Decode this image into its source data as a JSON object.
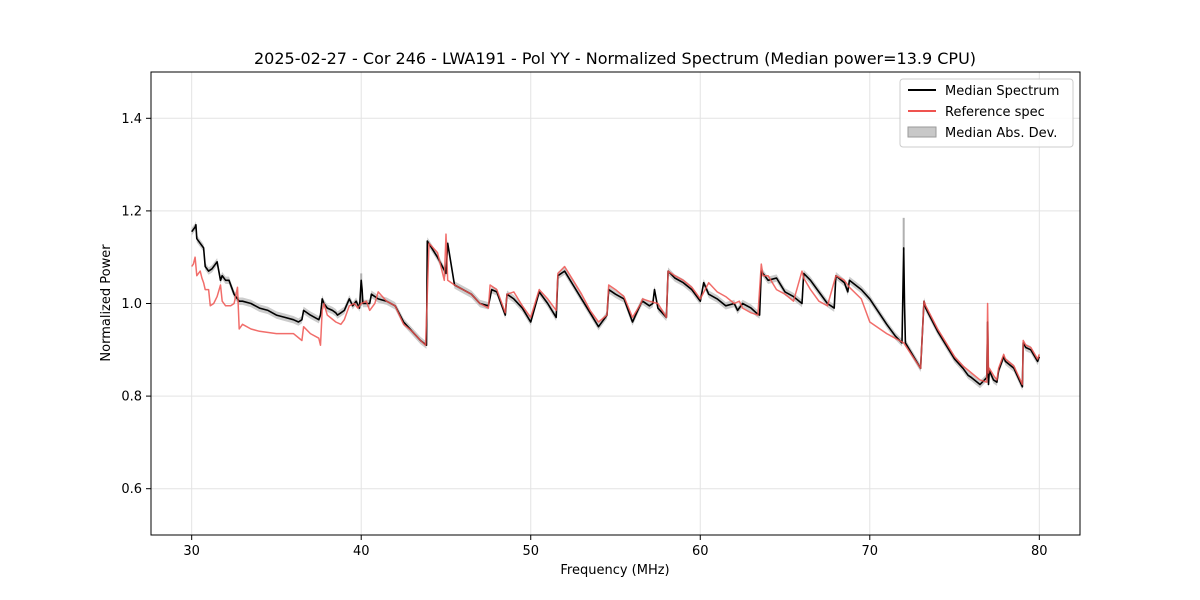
{
  "chart_data": {
    "type": "line",
    "title": "2025-02-27 - Cor 246 - LWA191 - Pol YY - Normalized Spectrum (Median power=13.9 CPU)",
    "xlabel": "Frequency (MHz)",
    "ylabel": "Normalized Power",
    "xlim": [
      27.6,
      82.4
    ],
    "ylim": [
      0.5,
      1.5
    ],
    "xticks": [
      30,
      40,
      50,
      60,
      70,
      80
    ],
    "yticks": [
      0.6,
      0.8,
      1.0,
      1.2,
      1.4
    ],
    "xtick_labels": [
      "30",
      "40",
      "50",
      "60",
      "70",
      "80"
    ],
    "ytick_labels": [
      "0.6",
      "0.8",
      "1.0",
      "1.2",
      "1.4"
    ],
    "grid": true,
    "legend_position": "top-right",
    "colors": {
      "median": "#000000",
      "reference": "#ef5350",
      "band": "#bfbfbf",
      "overlap": "#8b0000"
    },
    "series": [
      {
        "name": "Median Spectrum",
        "x": [
          30.0,
          30.2,
          30.25,
          30.3,
          30.5,
          30.6,
          30.7,
          30.8,
          31.0,
          31.2,
          31.5,
          31.7,
          31.8,
          32.0,
          32.2,
          32.5,
          32.7,
          32.8,
          33.0,
          33.5,
          34.0,
          34.5,
          35.0,
          35.5,
          36.0,
          36.3,
          36.5,
          36.6,
          37.0,
          37.5,
          37.6,
          37.7,
          37.8,
          38.0,
          38.3,
          38.5,
          38.6,
          38.8,
          39.0,
          39.3,
          39.5,
          39.7,
          39.9,
          40.0,
          40.05,
          40.1,
          40.5,
          40.6,
          41.0,
          41.5,
          42.0,
          42.5,
          43.0,
          43.5,
          43.85,
          43.9,
          44.5,
          45.0,
          45.1,
          45.5,
          46.0,
          46.5,
          47.0,
          47.5,
          47.7,
          48.0,
          48.5,
          48.6,
          49.0,
          49.5,
          50.0,
          50.5,
          51.0,
          51.5,
          51.6,
          52.0,
          52.5,
          53.0,
          53.5,
          54.0,
          54.5,
          54.6,
          55.0,
          55.5,
          56.0,
          56.5,
          56.6,
          57.0,
          57.2,
          57.3,
          57.5,
          58.0,
          58.1,
          58.5,
          59.0,
          59.5,
          60.0,
          60.2,
          60.5,
          61.0,
          61.5,
          62.0,
          62.2,
          62.5,
          63.0,
          63.3,
          63.5,
          63.6,
          64.0,
          64.5,
          65.0,
          65.5,
          66.0,
          66.1,
          66.5,
          67.0,
          67.5,
          67.9,
          68.0,
          68.5,
          68.7,
          68.8,
          69.5,
          70.0,
          71.0,
          71.5,
          71.9,
          72.0,
          72.05,
          72.1,
          73.0,
          73.2,
          73.3,
          74.0,
          75.0,
          75.5,
          75.8,
          76.0,
          76.5,
          76.9,
          76.95,
          77.0,
          77.05,
          77.3,
          77.5,
          77.6,
          77.9,
          78.0,
          78.5,
          79.0,
          79.05,
          79.2,
          79.5,
          79.9,
          80.0
        ],
        "values": [
          1.155,
          1.165,
          1.17,
          1.14,
          1.13,
          1.125,
          1.12,
          1.08,
          1.07,
          1.075,
          1.09,
          1.05,
          1.06,
          1.05,
          1.05,
          1.02,
          1.01,
          1.005,
          1.005,
          1.0,
          0.99,
          0.985,
          0.975,
          0.97,
          0.965,
          0.96,
          0.965,
          0.985,
          0.975,
          0.965,
          0.975,
          1.01,
          1.0,
          0.99,
          0.985,
          0.98,
          0.975,
          0.98,
          0.985,
          1.01,
          0.995,
          1.005,
          0.99,
          1.05,
          1.03,
          1.0,
          1.0,
          1.02,
          1.01,
          1.005,
          0.995,
          0.96,
          0.94,
          0.92,
          0.91,
          1.135,
          1.1,
          1.065,
          1.13,
          1.04,
          1.03,
          1.02,
          1.0,
          0.995,
          1.03,
          1.025,
          0.975,
          1.02,
          1.01,
          0.99,
          0.96,
          1.025,
          1.0,
          0.97,
          1.06,
          1.07,
          1.04,
          1.01,
          0.98,
          0.95,
          0.975,
          1.03,
          1.02,
          1.01,
          0.96,
          1.0,
          1.005,
          0.995,
          1.0,
          1.03,
          0.99,
          0.97,
          1.07,
          1.055,
          1.045,
          1.03,
          1.005,
          1.045,
          1.02,
          1.01,
          0.995,
          1.0,
          0.985,
          1.0,
          0.99,
          0.98,
          0.975,
          1.07,
          1.05,
          1.055,
          1.025,
          1.015,
          1.0,
          1.065,
          1.05,
          1.025,
          1.0,
          0.99,
          1.06,
          1.045,
          1.025,
          1.05,
          1.03,
          1.01,
          0.955,
          0.93,
          0.915,
          1.12,
          1.0,
          0.915,
          0.86,
          1.005,
          0.99,
          0.94,
          0.88,
          0.86,
          0.845,
          0.84,
          0.825,
          0.84,
          0.96,
          0.825,
          0.855,
          0.835,
          0.83,
          0.855,
          0.885,
          0.875,
          0.86,
          0.82,
          0.915,
          0.905,
          0.9,
          0.875,
          0.885
        ]
      },
      {
        "name": "Reference spec",
        "x": [
          30.0,
          30.1,
          30.2,
          30.3,
          30.5,
          30.6,
          30.7,
          30.8,
          31.0,
          31.1,
          31.3,
          31.5,
          31.7,
          31.8,
          32.0,
          32.3,
          32.5,
          32.7,
          32.8,
          33.0,
          33.5,
          34.0,
          35.0,
          35.5,
          36.0,
          36.5,
          36.6,
          37.0,
          37.5,
          37.6,
          37.7,
          37.8,
          38.0,
          38.5,
          38.8,
          39.0,
          39.3,
          39.6,
          39.8,
          40.0,
          40.3,
          40.5,
          40.8,
          41.0,
          41.5,
          42.0,
          42.5,
          43.0,
          43.5,
          43.8,
          44.0,
          44.5,
          44.9,
          45.0,
          45.1,
          45.5,
          46.0,
          46.5,
          47.0,
          47.5,
          47.6,
          48.0,
          48.5,
          48.6,
          49.0,
          49.5,
          50.0,
          50.5,
          51.0,
          51.5,
          51.6,
          52.0,
          52.5,
          53.0,
          53.5,
          54.0,
          54.5,
          54.6,
          55.0,
          55.5,
          56.0,
          56.5,
          56.6,
          57.0,
          57.5,
          58.0,
          58.1,
          58.5,
          59.0,
          59.5,
          60.0,
          60.5,
          61.0,
          61.5,
          62.0,
          62.3,
          62.5,
          63.0,
          63.4,
          63.6,
          63.7,
          64.0,
          64.5,
          65.0,
          65.5,
          66.0,
          66.1,
          66.5,
          67.0,
          67.5,
          68.0,
          68.5,
          68.8,
          69.5,
          70.0,
          71.0,
          72.0,
          73.0,
          73.2,
          73.3,
          74.0,
          75.0,
          75.5,
          76.0,
          76.5,
          76.9,
          76.95,
          77.0,
          77.05,
          77.3,
          77.5,
          77.6,
          77.9,
          78.0,
          78.5,
          79.0,
          79.05,
          79.2,
          79.5,
          79.9,
          80.0
        ],
        "values": [
          1.08,
          1.085,
          1.1,
          1.06,
          1.07,
          1.055,
          1.045,
          1.03,
          1.03,
          0.995,
          1.0,
          1.015,
          1.04,
          1.005,
          0.995,
          0.995,
          1.0,
          1.035,
          0.945,
          0.955,
          0.945,
          0.94,
          0.935,
          0.935,
          0.935,
          0.92,
          0.95,
          0.935,
          0.925,
          0.91,
          0.985,
          1.0,
          0.975,
          0.96,
          0.955,
          0.965,
          0.995,
          1.0,
          0.99,
          1.0,
          1.005,
          0.985,
          1.0,
          1.025,
          1.005,
          0.995,
          0.955,
          0.94,
          0.92,
          0.91,
          1.13,
          1.11,
          1.05,
          1.15,
          1.05,
          1.04,
          1.03,
          1.02,
          1.0,
          0.99,
          1.04,
          1.03,
          0.98,
          1.02,
          1.025,
          0.995,
          0.97,
          1.03,
          1.01,
          0.985,
          1.065,
          1.08,
          1.05,
          1.02,
          0.985,
          0.96,
          0.975,
          1.04,
          1.03,
          1.015,
          0.97,
          1.0,
          1.01,
          1.005,
          1.0,
          0.97,
          1.07,
          1.06,
          1.05,
          1.035,
          1.01,
          1.045,
          1.025,
          1.015,
          1.0,
          1.005,
          0.99,
          0.98,
          0.975,
          1.085,
          1.06,
          1.06,
          1.03,
          1.02,
          1.005,
          1.07,
          1.055,
          1.03,
          1.005,
          0.995,
          1.06,
          1.05,
          1.035,
          1.01,
          0.96,
          0.935,
          0.915,
          0.86,
          1.005,
          0.995,
          0.945,
          0.885,
          0.865,
          0.85,
          0.835,
          0.83,
          1.0,
          0.85,
          0.86,
          0.845,
          0.835,
          0.86,
          0.89,
          0.88,
          0.865,
          0.825,
          0.92,
          0.91,
          0.905,
          0.88,
          0.89
        ]
      }
    ],
    "mad_band": {
      "name": "Median Abs. Dev.",
      "half_width": 0.008,
      "spikes": [
        {
          "x": 40.0,
          "value": 1.065
        },
        {
          "x": 72.0,
          "value": 1.185
        }
      ]
    }
  }
}
